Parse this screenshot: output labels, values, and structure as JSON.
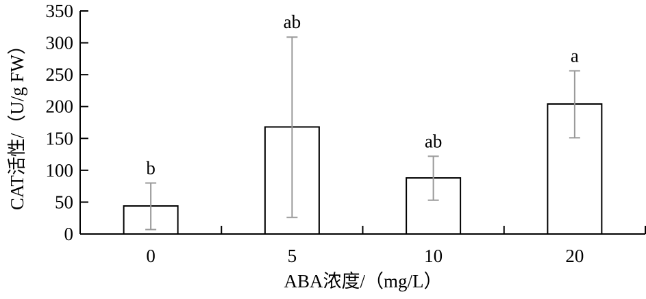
{
  "chart_data": {
    "type": "bar",
    "categories": [
      "0",
      "5",
      "10",
      "20"
    ],
    "values": [
      44,
      168,
      88,
      204
    ],
    "error_upper": [
      80,
      309,
      122,
      256
    ],
    "error_lower": [
      7,
      26,
      53,
      151
    ],
    "significance_labels": [
      "b",
      "ab",
      "ab",
      "a"
    ],
    "xlabel": "ABA浓度/（mg/L）",
    "ylabel": "CAT活性/（U/g FW）",
    "ylim": [
      0,
      350
    ],
    "yticks": [
      0,
      50,
      100,
      150,
      200,
      250,
      300,
      350
    ],
    "grid": false,
    "colors": {
      "bar_fill": "#ffffff",
      "bar_stroke": "#000000",
      "error_bar": "#999999"
    }
  }
}
